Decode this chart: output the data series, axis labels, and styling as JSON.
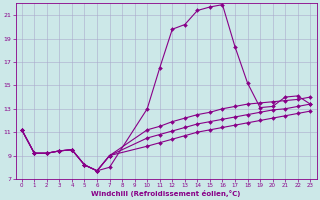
{
  "xlabel": "Windchill (Refroidissement éolien,°C)",
  "background_color": "#cce8e8",
  "grid_color": "#aaaacc",
  "line_color": "#880088",
  "xlim": [
    -0.5,
    23.5
  ],
  "ylim": [
    7,
    22
  ],
  "xticks": [
    0,
    1,
    2,
    3,
    4,
    5,
    6,
    7,
    8,
    9,
    10,
    11,
    12,
    13,
    14,
    15,
    16,
    17,
    18,
    19,
    20,
    21,
    22,
    23
  ],
  "yticks": [
    7,
    9,
    11,
    13,
    15,
    17,
    19,
    21
  ],
  "curve1_x": [
    0,
    1,
    2,
    3,
    4,
    5,
    6,
    7,
    10,
    11,
    12,
    13,
    14,
    15,
    16,
    17,
    18,
    19,
    20,
    21,
    22,
    23
  ],
  "curve1_y": [
    11.2,
    9.2,
    9.2,
    9.4,
    9.5,
    8.2,
    7.7,
    8.0,
    13.0,
    16.5,
    19.8,
    20.2,
    21.4,
    21.7,
    21.9,
    18.3,
    15.2,
    13.1,
    13.2,
    14.0,
    14.1,
    13.4
  ],
  "curve2_x": [
    0,
    1,
    2,
    3,
    4,
    5,
    6,
    7,
    10,
    11,
    12,
    13,
    14,
    15,
    16,
    17,
    18,
    19,
    20,
    21,
    22,
    23
  ],
  "curve2_y": [
    11.2,
    9.2,
    9.2,
    9.4,
    9.5,
    8.2,
    7.7,
    9.0,
    11.2,
    11.5,
    11.9,
    12.2,
    12.5,
    12.7,
    13.0,
    13.2,
    13.4,
    13.5,
    13.6,
    13.7,
    13.8,
    14.0
  ],
  "curve3_x": [
    0,
    1,
    2,
    3,
    4,
    5,
    6,
    7,
    10,
    11,
    12,
    13,
    14,
    15,
    16,
    17,
    18,
    19,
    20,
    21,
    22,
    23
  ],
  "curve3_y": [
    11.2,
    9.2,
    9.2,
    9.4,
    9.5,
    8.2,
    7.7,
    9.0,
    10.5,
    10.8,
    11.1,
    11.4,
    11.7,
    11.9,
    12.1,
    12.3,
    12.5,
    12.7,
    12.9,
    13.0,
    13.2,
    13.4
  ],
  "curve4_x": [
    0,
    1,
    2,
    3,
    4,
    5,
    6,
    7,
    10,
    11,
    12,
    13,
    14,
    15,
    16,
    17,
    18,
    19,
    20,
    21,
    22,
    23
  ],
  "curve4_y": [
    11.2,
    9.2,
    9.2,
    9.4,
    9.5,
    8.2,
    7.7,
    9.0,
    9.8,
    10.1,
    10.4,
    10.7,
    11.0,
    11.2,
    11.4,
    11.6,
    11.8,
    12.0,
    12.2,
    12.4,
    12.6,
    12.8
  ]
}
